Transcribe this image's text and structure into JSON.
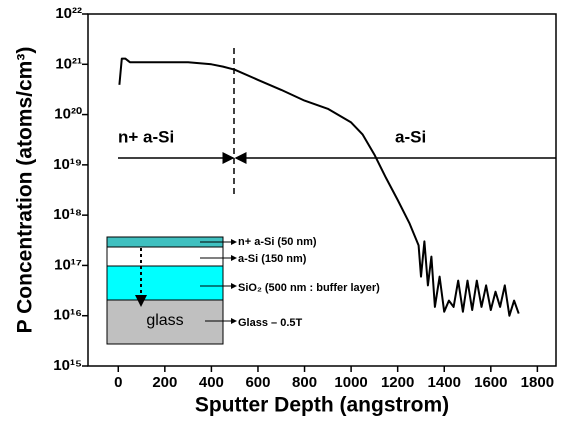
{
  "chart_data": {
    "type": "line",
    "x_label": "Sputter Depth (angstrom)",
    "y_label": "P Concentration (atoms/cm³)",
    "y_log": true,
    "xlim": [
      -130,
      1880
    ],
    "ylim": [
      1000000000000000.0,
      1e+22
    ],
    "xticks": [
      0,
      200,
      400,
      600,
      800,
      1000,
      1200,
      1400,
      1600,
      1800
    ],
    "yticks": [
      {
        "value": 1000000000000000.0,
        "label": "10¹⁵"
      },
      {
        "value": 1e+16,
        "label": "10¹⁶"
      },
      {
        "value": 1e+17,
        "label": "10¹⁷"
      },
      {
        "value": 1e+18,
        "label": "10¹⁸"
      },
      {
        "value": 1e+19,
        "label": "10¹⁹"
      },
      {
        "value": 1e+20,
        "label": "10²⁰"
      },
      {
        "value": 1e+21,
        "label": "10²¹"
      },
      {
        "value": 1e+22,
        "label": "10²²"
      }
    ],
    "annotations": [
      "n+ a-Si",
      "a-Si",
      "n+ a-Si (50 nm)",
      "a-Si (150 nm)",
      "SiO₂ (500 nm : buffer layer)",
      "glass",
      "Glass – 0.5T"
    ],
    "x": [
      5,
      15,
      30,
      50,
      100,
      200,
      300,
      400,
      450,
      500,
      600,
      700,
      800,
      900,
      1000,
      1050,
      1100,
      1150,
      1200,
      1250,
      1290,
      1300,
      1315,
      1330,
      1345,
      1360,
      1380,
      1400,
      1420,
      1440,
      1460,
      1480,
      1500,
      1520,
      1540,
      1560,
      1580,
      1600,
      1620,
      1640,
      1660,
      1680,
      1700,
      1720
    ],
    "series": [
      {
        "color": "#000000",
        "values": [
          3.9e+20,
          1.3e+21,
          1.3e+21,
          1.1e+21,
          1.1e+21,
          1.1e+21,
          1.1e+21,
          1e+21,
          9e+20,
          7.8e+20,
          4.9e+20,
          3.1e+20,
          1.9e+20,
          1.3e+20,
          7e+19,
          4e+19,
          1.6e+19,
          5.5e+18,
          2e+18,
          7e+17,
          2.5e+17,
          6e+16,
          3e+17,
          4e+16,
          1.5e+17,
          1.5e+16,
          6e+16,
          1.2e+16,
          2e+16,
          1.5e+16,
          5e+16,
          1.2e+16,
          5e+16,
          1.3e+16,
          5e+16,
          1.5e+16,
          4e+16,
          1.3e+16,
          3e+16,
          1.5e+16,
          4e+16,
          1e+16,
          2e+16,
          1.1e+16
        ]
      }
    ]
  }
}
